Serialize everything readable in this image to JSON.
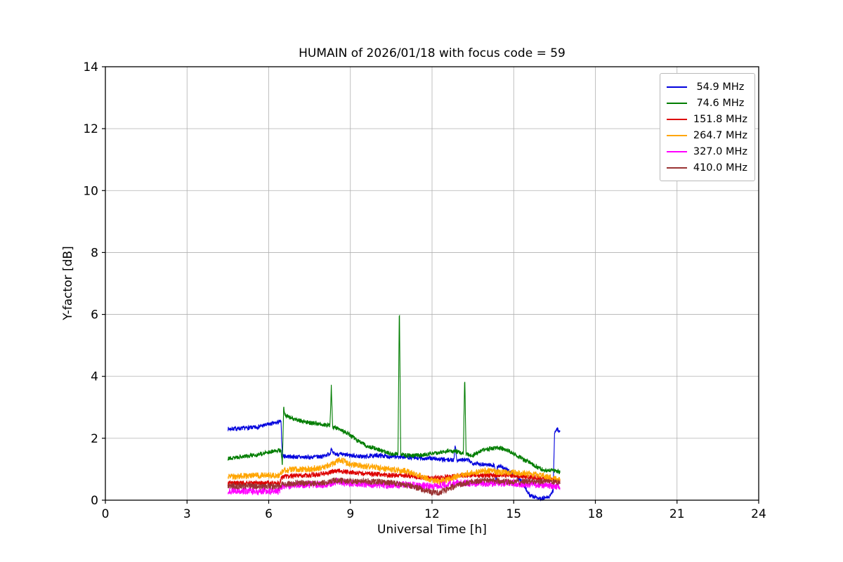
{
  "chart_data": {
    "type": "line",
    "title": "HUMAIN of 2026/01/18 with focus code = 59",
    "xlabel": "Universal Time [h]",
    "ylabel": "Y-factor [dB]",
    "xlim": [
      0,
      24
    ],
    "ylim": [
      0,
      14
    ],
    "xticks": [
      0,
      3,
      6,
      9,
      12,
      15,
      18,
      21,
      24
    ],
    "yticks": [
      0,
      2,
      4,
      6,
      8,
      10,
      12,
      14
    ],
    "grid": true,
    "legend_position": "top-right",
    "series": [
      {
        "name": " 54.9 MHz",
        "color": "#0000dd",
        "noise": 0.07,
        "keypoints": [
          [
            4.5,
            2.3
          ],
          [
            5.0,
            2.32
          ],
          [
            5.5,
            2.35
          ],
          [
            6.0,
            2.45
          ],
          [
            6.3,
            2.5
          ],
          [
            6.45,
            2.55
          ],
          [
            6.5,
            1.45
          ],
          [
            6.55,
            1.42
          ],
          [
            7.0,
            1.4
          ],
          [
            7.5,
            1.38
          ],
          [
            8.0,
            1.42
          ],
          [
            8.25,
            1.5
          ],
          [
            8.3,
            1.7
          ],
          [
            8.35,
            1.5
          ],
          [
            8.6,
            1.48
          ],
          [
            9.0,
            1.45
          ],
          [
            9.5,
            1.4
          ],
          [
            10.0,
            1.45
          ],
          [
            10.5,
            1.4
          ],
          [
            11.0,
            1.4
          ],
          [
            11.5,
            1.35
          ],
          [
            12.0,
            1.35
          ],
          [
            12.5,
            1.3
          ],
          [
            12.8,
            1.3
          ],
          [
            12.85,
            1.85
          ],
          [
            12.9,
            1.3
          ],
          [
            13.0,
            1.3
          ],
          [
            13.3,
            1.3
          ],
          [
            13.5,
            1.2
          ],
          [
            14.0,
            1.15
          ],
          [
            14.3,
            1.12
          ],
          [
            14.35,
            0.55
          ],
          [
            14.4,
            1.1
          ],
          [
            14.5,
            1.1
          ],
          [
            15.0,
            0.85
          ],
          [
            15.3,
            0.6
          ],
          [
            15.6,
            0.15
          ],
          [
            16.0,
            0.05
          ],
          [
            16.3,
            0.1
          ],
          [
            16.45,
            0.3
          ],
          [
            16.5,
            2.2
          ],
          [
            16.6,
            2.3
          ],
          [
            16.7,
            2.2
          ]
        ]
      },
      {
        "name": " 74.6 MHz",
        "color": "#007d00",
        "noise": 0.07,
        "keypoints": [
          [
            4.5,
            1.35
          ],
          [
            5.0,
            1.4
          ],
          [
            5.5,
            1.45
          ],
          [
            6.0,
            1.55
          ],
          [
            6.3,
            1.6
          ],
          [
            6.45,
            1.62
          ],
          [
            6.5,
            1.1
          ],
          [
            6.55,
            3.0
          ],
          [
            6.6,
            2.75
          ],
          [
            6.7,
            2.7
          ],
          [
            7.0,
            2.6
          ],
          [
            7.5,
            2.5
          ],
          [
            8.0,
            2.45
          ],
          [
            8.25,
            2.4
          ],
          [
            8.3,
            3.7
          ],
          [
            8.35,
            2.35
          ],
          [
            8.6,
            2.3
          ],
          [
            9.0,
            2.1
          ],
          [
            9.3,
            1.9
          ],
          [
            9.6,
            1.75
          ],
          [
            10.0,
            1.65
          ],
          [
            10.3,
            1.55
          ],
          [
            10.5,
            1.5
          ],
          [
            10.75,
            1.5
          ],
          [
            10.8,
            6.3
          ],
          [
            10.85,
            1.5
          ],
          [
            11.0,
            1.45
          ],
          [
            11.5,
            1.45
          ],
          [
            12.0,
            1.5
          ],
          [
            12.3,
            1.55
          ],
          [
            12.6,
            1.6
          ],
          [
            13.0,
            1.55
          ],
          [
            13.15,
            1.5
          ],
          [
            13.2,
            4.0
          ],
          [
            13.25,
            1.5
          ],
          [
            13.5,
            1.45
          ],
          [
            13.8,
            1.6
          ],
          [
            14.0,
            1.65
          ],
          [
            14.5,
            1.7
          ],
          [
            14.8,
            1.6
          ],
          [
            15.0,
            1.5
          ],
          [
            15.3,
            1.35
          ],
          [
            15.6,
            1.2
          ],
          [
            16.0,
            1.0
          ],
          [
            16.3,
            0.95
          ],
          [
            16.5,
            0.95
          ],
          [
            16.7,
            0.9
          ]
        ]
      },
      {
        "name": "151.8 MHz",
        "color": "#dd0000",
        "noise": 0.08,
        "keypoints": [
          [
            4.5,
            0.55
          ],
          [
            5.5,
            0.55
          ],
          [
            6.4,
            0.55
          ],
          [
            6.5,
            0.75
          ],
          [
            7.0,
            0.8
          ],
          [
            7.5,
            0.8
          ],
          [
            8.0,
            0.85
          ],
          [
            8.5,
            0.95
          ],
          [
            9.0,
            0.9
          ],
          [
            9.5,
            0.85
          ],
          [
            10.0,
            0.85
          ],
          [
            10.5,
            0.8
          ],
          [
            11.0,
            0.8
          ],
          [
            11.5,
            0.75
          ],
          [
            12.0,
            0.7
          ],
          [
            12.5,
            0.75
          ],
          [
            13.0,
            0.8
          ],
          [
            13.5,
            0.8
          ],
          [
            14.0,
            0.8
          ],
          [
            14.5,
            0.8
          ],
          [
            15.0,
            0.8
          ],
          [
            15.5,
            0.75
          ],
          [
            16.0,
            0.7
          ],
          [
            16.5,
            0.65
          ],
          [
            16.7,
            0.6
          ]
        ]
      },
      {
        "name": "264.7 MHz",
        "color": "#ffa500",
        "noise": 0.1,
        "keypoints": [
          [
            4.5,
            0.75
          ],
          [
            5.0,
            0.78
          ],
          [
            5.5,
            0.8
          ],
          [
            6.0,
            0.8
          ],
          [
            6.4,
            0.8
          ],
          [
            6.5,
            0.95
          ],
          [
            7.0,
            1.0
          ],
          [
            7.5,
            1.0
          ],
          [
            8.0,
            1.05
          ],
          [
            8.4,
            1.2
          ],
          [
            8.6,
            1.3
          ],
          [
            8.8,
            1.25
          ],
          [
            9.0,
            1.15
          ],
          [
            9.5,
            1.1
          ],
          [
            10.0,
            1.05
          ],
          [
            10.5,
            1.0
          ],
          [
            11.0,
            0.95
          ],
          [
            11.5,
            0.8
          ],
          [
            12.0,
            0.65
          ],
          [
            12.3,
            0.6
          ],
          [
            12.7,
            0.7
          ],
          [
            13.0,
            0.8
          ],
          [
            13.5,
            0.9
          ],
          [
            14.0,
            0.95
          ],
          [
            14.5,
            0.9
          ],
          [
            15.0,
            0.9
          ],
          [
            15.5,
            0.85
          ],
          [
            16.0,
            0.8
          ],
          [
            16.5,
            0.7
          ],
          [
            16.7,
            0.65
          ]
        ]
      },
      {
        "name": "327.0 MHz",
        "color": "#ff00ff",
        "noise": 0.12,
        "keypoints": [
          [
            4.5,
            0.3
          ],
          [
            5.5,
            0.3
          ],
          [
            6.4,
            0.3
          ],
          [
            6.5,
            0.45
          ],
          [
            7.0,
            0.5
          ],
          [
            8.0,
            0.5
          ],
          [
            8.5,
            0.6
          ],
          [
            9.0,
            0.55
          ],
          [
            10.0,
            0.5
          ],
          [
            11.0,
            0.5
          ],
          [
            12.0,
            0.45
          ],
          [
            13.0,
            0.55
          ],
          [
            14.0,
            0.55
          ],
          [
            15.0,
            0.55
          ],
          [
            15.5,
            0.5
          ],
          [
            16.0,
            0.5
          ],
          [
            16.5,
            0.45
          ],
          [
            16.7,
            0.45
          ]
        ]
      },
      {
        "name": "410.0 MHz",
        "color": "#993333",
        "noise": 0.1,
        "keypoints": [
          [
            4.5,
            0.45
          ],
          [
            5.5,
            0.45
          ],
          [
            6.4,
            0.45
          ],
          [
            6.5,
            0.5
          ],
          [
            7.0,
            0.55
          ],
          [
            8.0,
            0.55
          ],
          [
            8.5,
            0.65
          ],
          [
            9.0,
            0.6
          ],
          [
            9.5,
            0.6
          ],
          [
            10.0,
            0.6
          ],
          [
            10.5,
            0.55
          ],
          [
            11.0,
            0.5
          ],
          [
            11.5,
            0.4
          ],
          [
            12.0,
            0.25
          ],
          [
            12.3,
            0.25
          ],
          [
            12.7,
            0.4
          ],
          [
            13.0,
            0.5
          ],
          [
            13.5,
            0.6
          ],
          [
            14.0,
            0.65
          ],
          [
            14.5,
            0.6
          ],
          [
            15.0,
            0.6
          ],
          [
            15.5,
            0.6
          ],
          [
            16.0,
            0.6
          ],
          [
            16.5,
            0.6
          ],
          [
            16.7,
            0.6
          ]
        ]
      }
    ]
  }
}
